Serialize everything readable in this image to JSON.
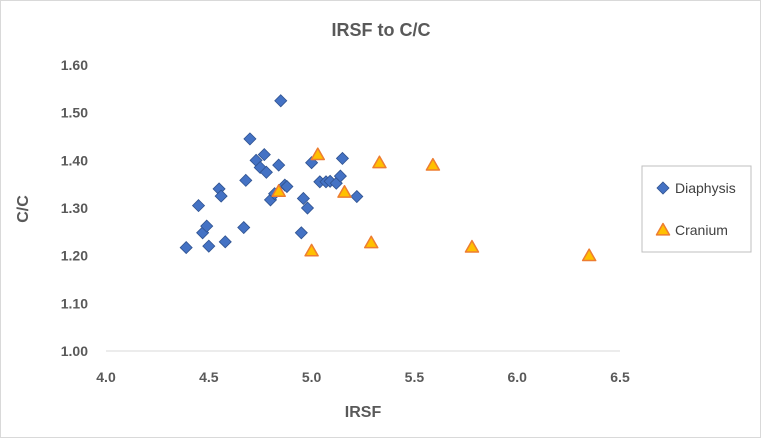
{
  "chart_data": {
    "type": "scatter",
    "title": "IRSF to C/C",
    "xlabel": "IRSF",
    "ylabel": "C/C",
    "xlim": [
      4.0,
      6.5
    ],
    "ylim": [
      1.0,
      1.6
    ],
    "x_ticks": [
      "4.0",
      "4.5",
      "5.0",
      "5.5",
      "6.0",
      "6.5"
    ],
    "y_ticks": [
      "1.00",
      "1.10",
      "1.20",
      "1.30",
      "1.40",
      "1.50",
      "1.60"
    ],
    "grid": false,
    "legend_position": "right",
    "series": [
      {
        "name": "Diaphysis",
        "marker": "diamond",
        "color": "#4472c4",
        "points": [
          [
            4.39,
            1.217
          ],
          [
            4.45,
            1.305
          ],
          [
            4.47,
            1.248
          ],
          [
            4.49,
            1.262
          ],
          [
            4.5,
            1.22
          ],
          [
            4.55,
            1.34
          ],
          [
            4.56,
            1.325
          ],
          [
            4.58,
            1.229
          ],
          [
            4.67,
            1.259
          ],
          [
            4.68,
            1.358
          ],
          [
            4.7,
            1.445
          ],
          [
            4.73,
            1.4
          ],
          [
            4.75,
            1.385
          ],
          [
            4.77,
            1.412
          ],
          [
            4.78,
            1.375
          ],
          [
            4.8,
            1.317
          ],
          [
            4.82,
            1.33
          ],
          [
            4.84,
            1.39
          ],
          [
            4.85,
            1.525
          ],
          [
            4.87,
            1.348
          ],
          [
            4.88,
            1.345
          ],
          [
            4.95,
            1.248
          ],
          [
            4.96,
            1.32
          ],
          [
            4.98,
            1.3
          ],
          [
            5.0,
            1.395
          ],
          [
            5.04,
            1.355
          ],
          [
            5.07,
            1.355
          ],
          [
            5.09,
            1.356
          ],
          [
            5.12,
            1.352
          ],
          [
            5.14,
            1.367
          ],
          [
            5.15,
            1.404
          ],
          [
            5.22,
            1.324
          ]
        ]
      },
      {
        "name": "Cranium",
        "marker": "triangle",
        "color": "#ffc000",
        "stroke": "#ed7d31",
        "points": [
          [
            4.84,
            1.335
          ],
          [
            5.0,
            1.21
          ],
          [
            5.03,
            1.412
          ],
          [
            5.16,
            1.333
          ],
          [
            5.29,
            1.227
          ],
          [
            5.33,
            1.395
          ],
          [
            5.59,
            1.39
          ],
          [
            5.78,
            1.218
          ],
          [
            6.35,
            1.2
          ]
        ]
      }
    ]
  }
}
